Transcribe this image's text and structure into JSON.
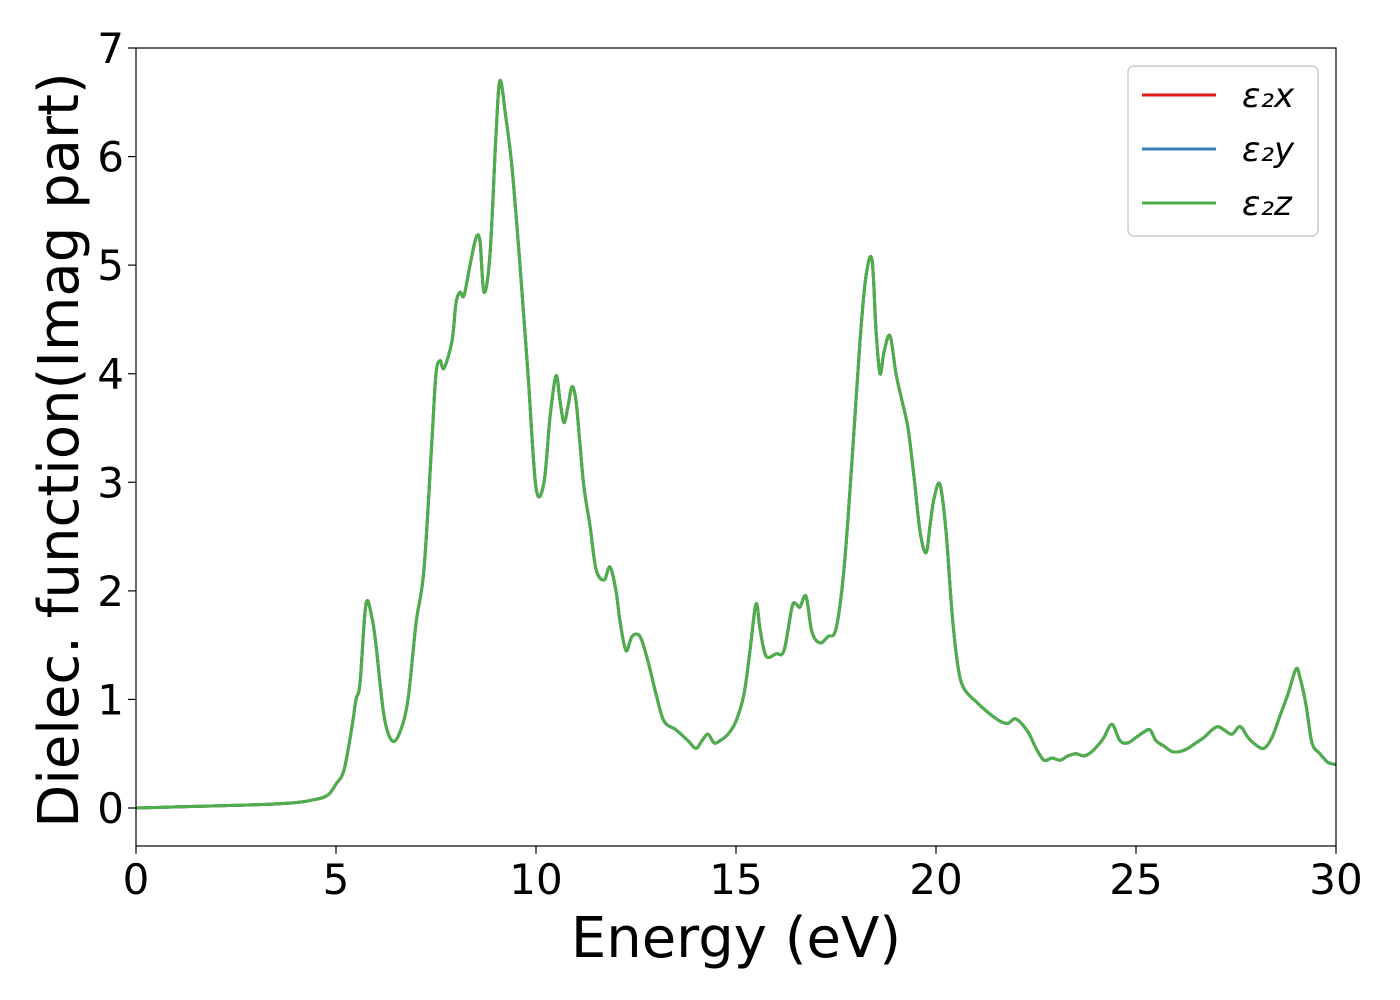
{
  "chart_data": {
    "type": "line",
    "xlabel": "Energy (eV)",
    "ylabel": "Dielec. function(Imag part)",
    "xlim": [
      0,
      30
    ],
    "ylim": [
      -0.35,
      7.0
    ],
    "xticks": [
      0,
      5,
      10,
      15,
      20,
      25,
      30
    ],
    "yticks": [
      0,
      1,
      2,
      3,
      4,
      5,
      6,
      7
    ],
    "grid": false,
    "legend_position": "top-right",
    "series": [
      {
        "name": "ε₂x",
        "color": "#e41a1c"
      },
      {
        "name": "ε₂y",
        "color": "#377eb8"
      },
      {
        "name": "ε₂z",
        "color": "#4daf4a"
      }
    ],
    "x": [
      0,
      1,
      2,
      3,
      4,
      4.5,
      4.8,
      5.0,
      5.2,
      5.4,
      5.5,
      5.6,
      5.75,
      5.9,
      6.0,
      6.2,
      6.4,
      6.6,
      6.8,
      7.0,
      7.2,
      7.4,
      7.5,
      7.6,
      7.7,
      7.9,
      8.0,
      8.1,
      8.2,
      8.35,
      8.5,
      8.6,
      8.7,
      8.85,
      9.0,
      9.1,
      9.25,
      9.4,
      9.6,
      9.8,
      10.0,
      10.2,
      10.35,
      10.5,
      10.6,
      10.7,
      10.8,
      10.9,
      11.0,
      11.1,
      11.2,
      11.35,
      11.5,
      11.7,
      11.85,
      12.0,
      12.1,
      12.25,
      12.4,
      12.6,
      12.8,
      13.0,
      13.2,
      13.5,
      13.8,
      14.0,
      14.15,
      14.3,
      14.45,
      14.6,
      14.8,
      15.0,
      15.2,
      15.35,
      15.5,
      15.6,
      15.75,
      16.0,
      16.2,
      16.4,
      16.5,
      16.6,
      16.75,
      16.9,
      17.1,
      17.3,
      17.5,
      17.7,
      17.9,
      18.1,
      18.25,
      18.4,
      18.5,
      18.6,
      18.7,
      18.85,
      19.0,
      19.15,
      19.3,
      19.45,
      19.6,
      19.75,
      19.85,
      19.95,
      20.1,
      20.25,
      20.4,
      20.55,
      20.7,
      21.0,
      21.3,
      21.6,
      21.8,
      22.0,
      22.3,
      22.5,
      22.7,
      22.9,
      23.1,
      23.3,
      23.5,
      23.7,
      23.9,
      24.1,
      24.2,
      24.4,
      24.6,
      24.8,
      25.0,
      25.2,
      25.35,
      25.5,
      25.7,
      25.9,
      26.1,
      26.3,
      26.5,
      26.7,
      26.9,
      27.05,
      27.2,
      27.4,
      27.6,
      27.8,
      28.0,
      28.2,
      28.4,
      28.6,
      28.8,
      29.0,
      29.1,
      29.25,
      29.4,
      29.6,
      29.8,
      30.0
    ],
    "y": [
      0.0,
      0.01,
      0.02,
      0.03,
      0.05,
      0.08,
      0.12,
      0.22,
      0.35,
      0.75,
      1.0,
      1.15,
      1.88,
      1.75,
      1.5,
      0.85,
      0.62,
      0.7,
      1.0,
      1.7,
      2.2,
      3.4,
      4.0,
      4.12,
      4.05,
      4.3,
      4.65,
      4.75,
      4.72,
      5.0,
      5.25,
      5.22,
      4.75,
      5.1,
      6.2,
      6.7,
      6.35,
      5.9,
      5.0,
      4.0,
      2.95,
      3.0,
      3.6,
      3.98,
      3.75,
      3.55,
      3.7,
      3.88,
      3.75,
      3.35,
      2.95,
      2.6,
      2.2,
      2.1,
      2.22,
      2.0,
      1.72,
      1.45,
      1.58,
      1.58,
      1.35,
      1.05,
      0.8,
      0.72,
      0.62,
      0.55,
      0.62,
      0.68,
      0.6,
      0.62,
      0.68,
      0.8,
      1.05,
      1.45,
      1.88,
      1.65,
      1.4,
      1.42,
      1.45,
      1.85,
      1.88,
      1.85,
      1.95,
      1.62,
      1.52,
      1.58,
      1.65,
      2.2,
      3.2,
      4.3,
      4.9,
      5.05,
      4.4,
      4.0,
      4.2,
      4.35,
      4.0,
      3.75,
      3.5,
      3.05,
      2.55,
      2.35,
      2.6,
      2.85,
      2.98,
      2.55,
      1.8,
      1.3,
      1.1,
      0.98,
      0.88,
      0.8,
      0.78,
      0.82,
      0.7,
      0.55,
      0.44,
      0.46,
      0.44,
      0.48,
      0.5,
      0.48,
      0.52,
      0.6,
      0.65,
      0.77,
      0.62,
      0.6,
      0.65,
      0.7,
      0.72,
      0.62,
      0.57,
      0.52,
      0.52,
      0.55,
      0.6,
      0.65,
      0.72,
      0.75,
      0.72,
      0.68,
      0.75,
      0.65,
      0.58,
      0.55,
      0.65,
      0.85,
      1.05,
      1.28,
      1.2,
      0.95,
      0.6,
      0.5,
      0.42,
      0.4
    ]
  }
}
